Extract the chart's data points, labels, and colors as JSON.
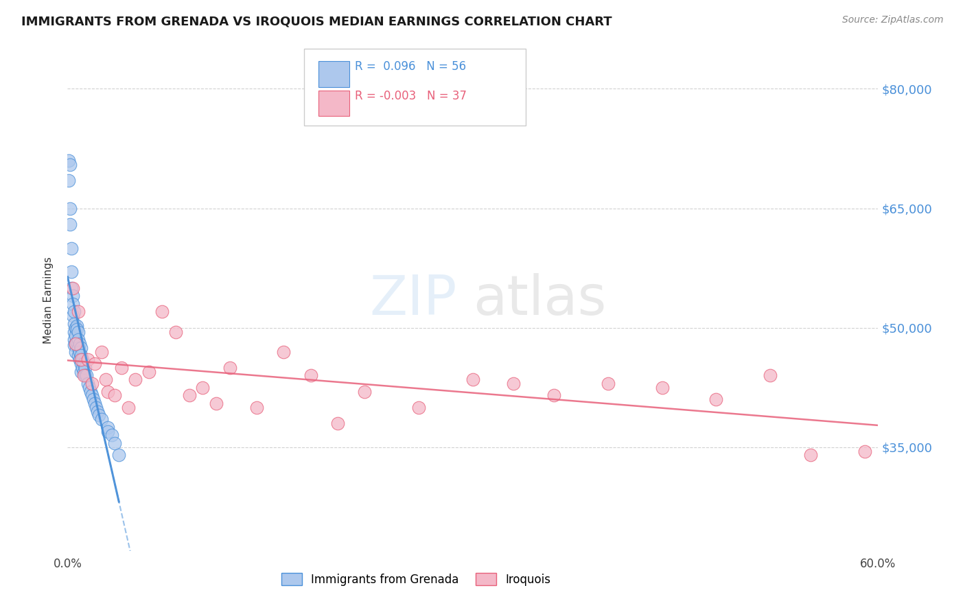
{
  "title": "IMMIGRANTS FROM GRENADA VS IROQUOIS MEDIAN EARNINGS CORRELATION CHART",
  "source": "Source: ZipAtlas.com",
  "ylabel": "Median Earnings",
  "xlim": [
    0.0,
    0.6
  ],
  "ylim": [
    22000,
    85000
  ],
  "yticks": [
    35000,
    50000,
    65000,
    80000
  ],
  "ytick_labels": [
    "$35,000",
    "$50,000",
    "$65,000",
    "$80,000"
  ],
  "xticks": [
    0.0,
    0.1,
    0.2,
    0.3,
    0.4,
    0.5,
    0.6
  ],
  "xtick_labels": [
    "0.0%",
    "",
    "",
    "",
    "",
    "",
    "60.0%"
  ],
  "legend_label1": "Immigrants from Grenada",
  "legend_label2": "Iroquois",
  "R1": 0.096,
  "N1": 56,
  "R2": -0.003,
  "N2": 37,
  "color1": "#adc8ed",
  "color2": "#f4b8c8",
  "trendline1_color": "#4a90d9",
  "trendline2_color": "#e8607a",
  "background_color": "#ffffff",
  "watermark": "ZIPatlas",
  "grenada_x": [
    0.001,
    0.001,
    0.002,
    0.002,
    0.002,
    0.003,
    0.003,
    0.003,
    0.004,
    0.004,
    0.004,
    0.005,
    0.005,
    0.005,
    0.005,
    0.005,
    0.006,
    0.006,
    0.006,
    0.006,
    0.007,
    0.007,
    0.007,
    0.008,
    0.008,
    0.008,
    0.008,
    0.009,
    0.009,
    0.009,
    0.01,
    0.01,
    0.01,
    0.01,
    0.011,
    0.011,
    0.012,
    0.012,
    0.013,
    0.013,
    0.014,
    0.015,
    0.016,
    0.017,
    0.018,
    0.019,
    0.02,
    0.021,
    0.022,
    0.023,
    0.025,
    0.03,
    0.03,
    0.033,
    0.035,
    0.038
  ],
  "grenada_y": [
    71000,
    68500,
    70500,
    65000,
    63000,
    60000,
    57000,
    55000,
    54000,
    53000,
    51500,
    52000,
    50500,
    49500,
    48500,
    47800,
    50000,
    49000,
    48000,
    47000,
    50200,
    49800,
    48200,
    49500,
    48500,
    47500,
    46500,
    48000,
    47000,
    46000,
    47500,
    46500,
    45500,
    44500,
    46000,
    45000,
    45500,
    44500,
    45000,
    44000,
    44000,
    43000,
    42500,
    42000,
    41500,
    41000,
    40500,
    40000,
    39500,
    39000,
    38500,
    37500,
    37000,
    36500,
    35500,
    34000
  ],
  "iroquois_x": [
    0.004,
    0.006,
    0.008,
    0.01,
    0.012,
    0.015,
    0.018,
    0.02,
    0.025,
    0.028,
    0.03,
    0.035,
    0.04,
    0.045,
    0.05,
    0.06,
    0.07,
    0.08,
    0.09,
    0.1,
    0.11,
    0.12,
    0.14,
    0.16,
    0.18,
    0.2,
    0.22,
    0.26,
    0.3,
    0.33,
    0.36,
    0.4,
    0.44,
    0.48,
    0.52,
    0.55,
    0.59
  ],
  "iroquois_y": [
    55000,
    48000,
    52000,
    46000,
    44000,
    46000,
    43000,
    45500,
    47000,
    43500,
    42000,
    41500,
    45000,
    40000,
    43500,
    44500,
    52000,
    49500,
    41500,
    42500,
    40500,
    45000,
    40000,
    47000,
    44000,
    38000,
    42000,
    40000,
    43500,
    43000,
    41500,
    43000,
    42500,
    41000,
    44000,
    34000,
    34500
  ]
}
